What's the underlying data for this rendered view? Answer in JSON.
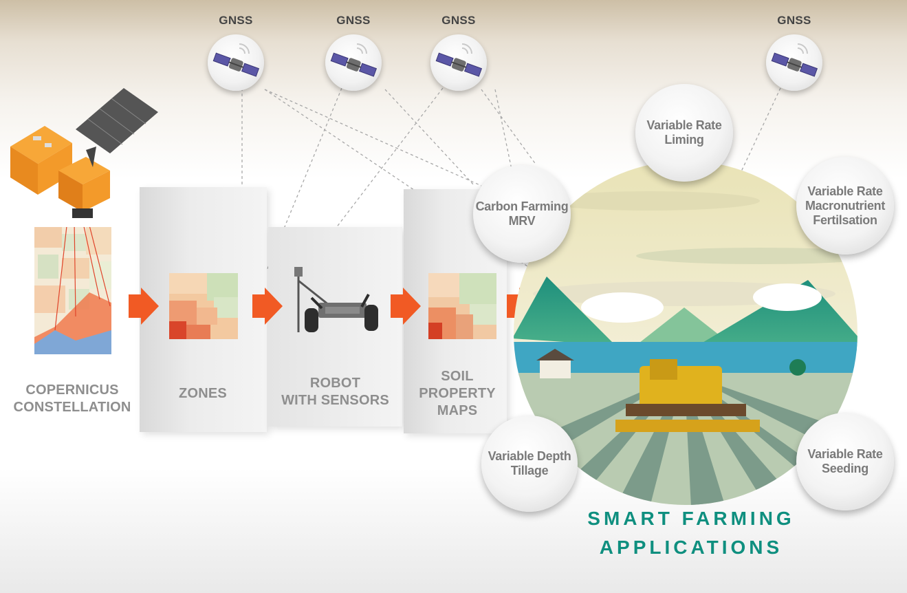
{
  "gnss_label": "GNSS",
  "stages": [
    {
      "label_line1": "COPERNICUS",
      "label_line2": "CONSTELLATION"
    },
    {
      "label_line1": "ZONES",
      "label_line2": ""
    },
    {
      "label_line1": "ROBOT",
      "label_line2": "WITH SENSORS"
    },
    {
      "label_line1": "SOIL",
      "label_line2": "PROPERTY",
      "label_line3": "MAPS"
    }
  ],
  "applications": {
    "carbon": {
      "line1": "Carbon Farming",
      "line2": "MRV"
    },
    "liming": {
      "line1": "Variable Rate",
      "line2": "Liming"
    },
    "fertilisation": {
      "line1": "Variable Rate",
      "line2": "Macronutrient",
      "line3": "Fertilsation"
    },
    "tillage": {
      "line1": "Variable Depth",
      "line2": "Tillage"
    },
    "seeding": {
      "line1": "Variable Rate",
      "line2": "Seeding"
    }
  },
  "title": {
    "line1": "SMART FARMING",
    "line2": "APPLICATIONS"
  },
  "colors": {
    "accent_orange": "#f15a24",
    "title_teal": "#0f8f7f",
    "label_gray": "#8e8e8e"
  },
  "icons": {
    "gnss": "satellite-icon",
    "copernicus": "earth-observation-satellite-icon",
    "robot": "soil-robot-icon",
    "tractor": "harvester-icon"
  }
}
